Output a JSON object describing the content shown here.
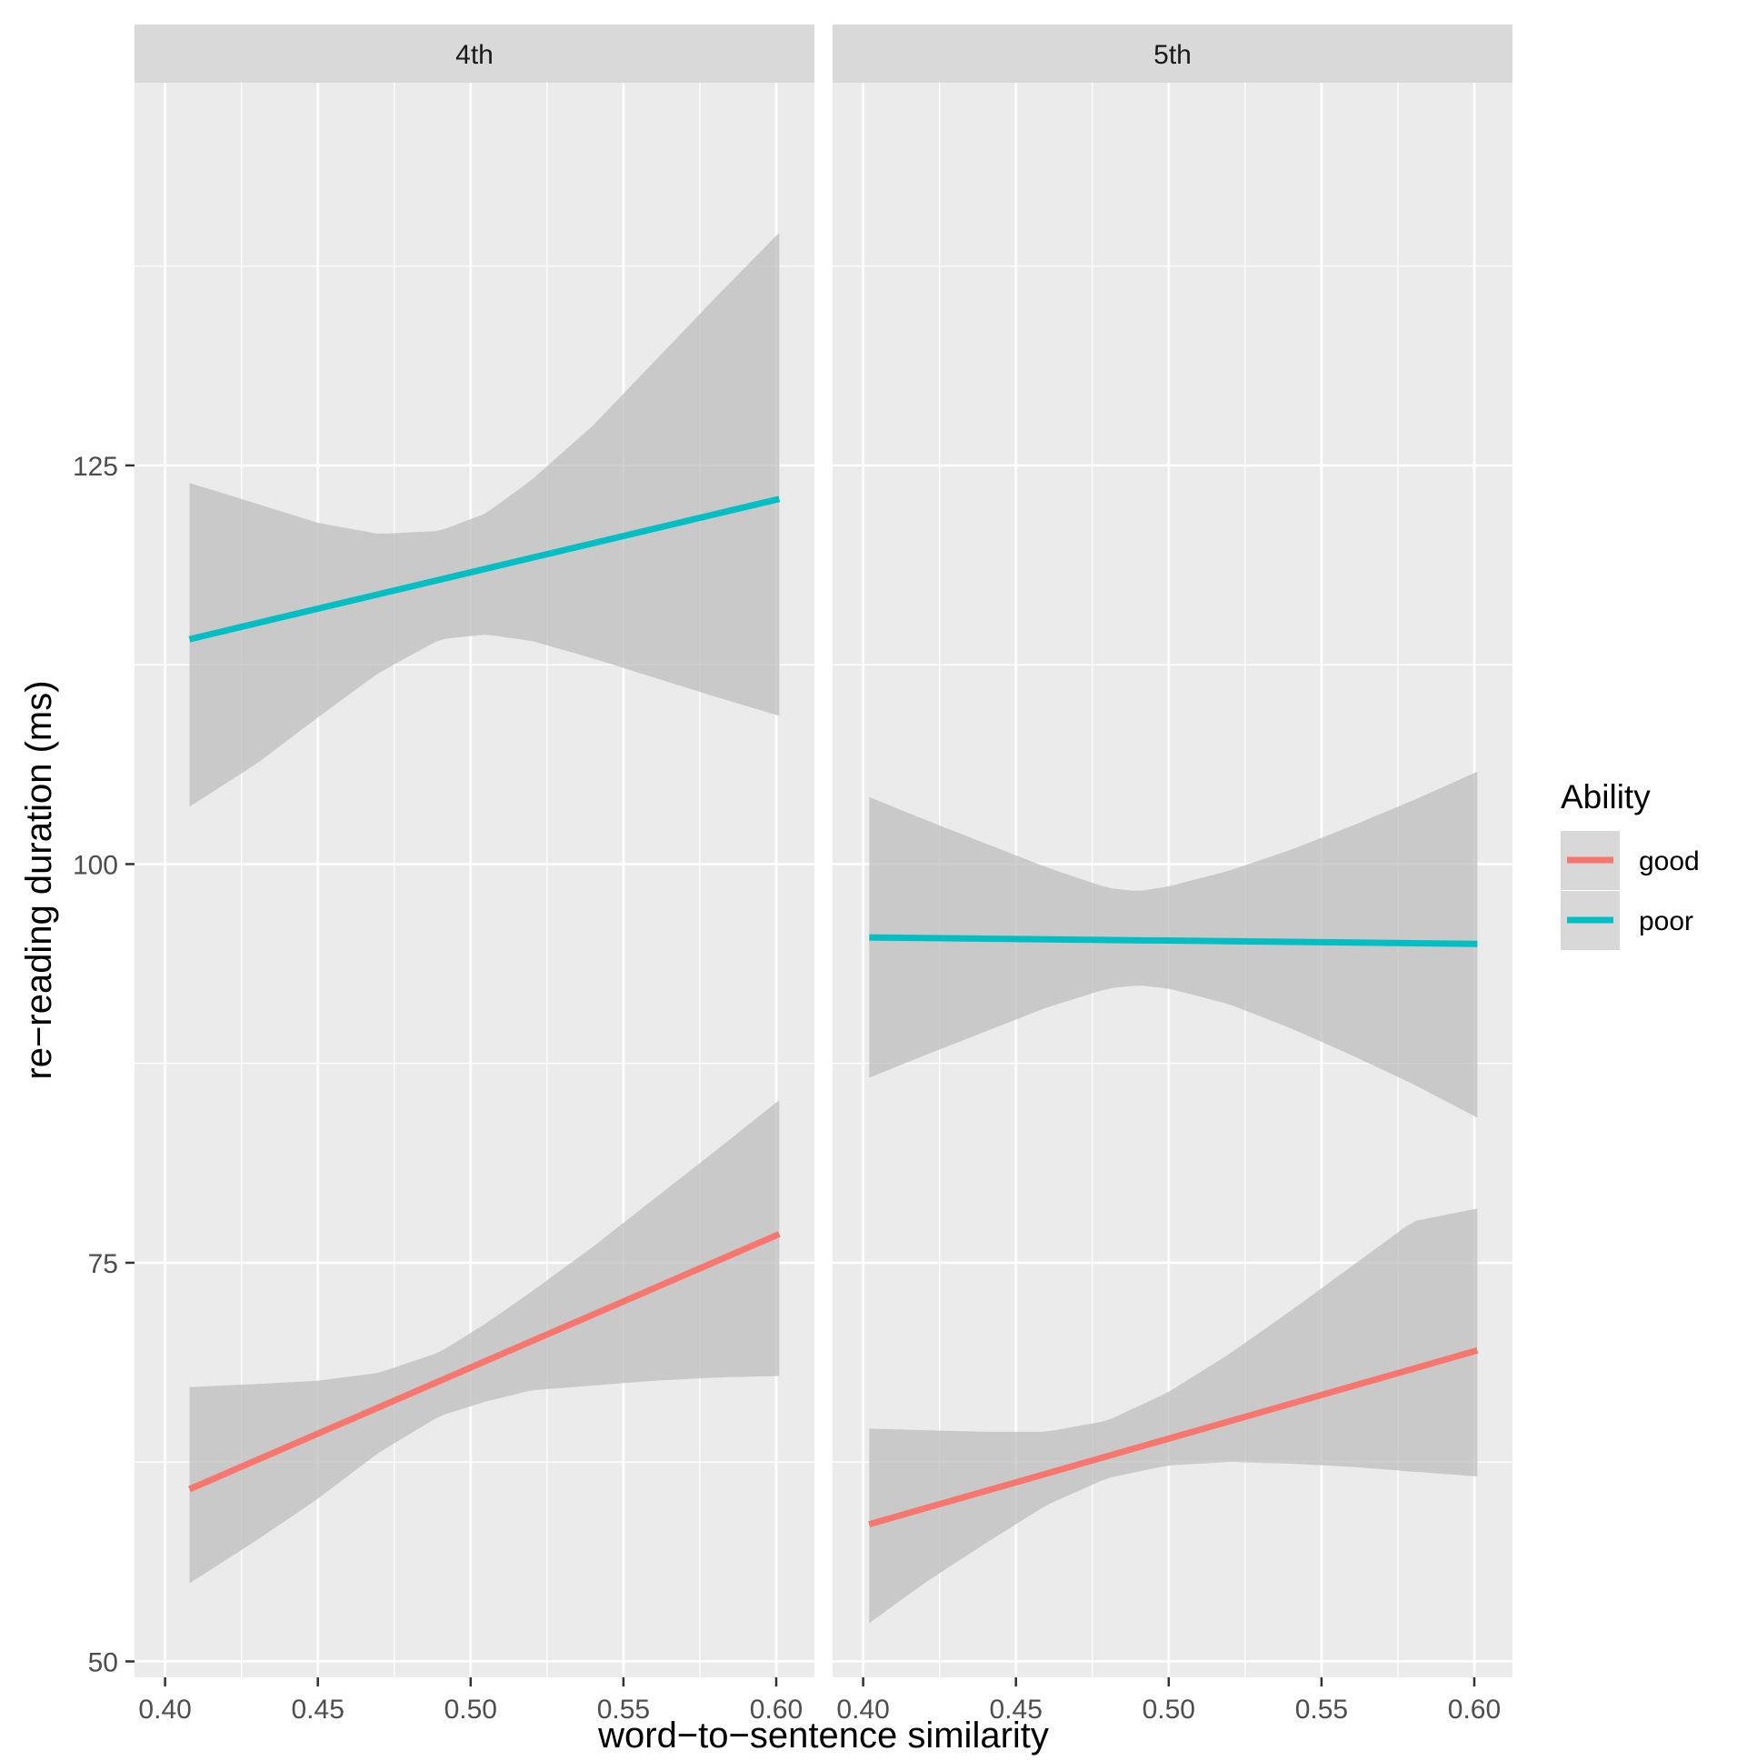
{
  "chart_data": {
    "type": "line",
    "xlabel": "word−to−sentence similarity",
    "ylabel": "re−reading duration (ms)",
    "xlim": [
      0.39,
      0.6125
    ],
    "ylim": [
      49,
      149
    ],
    "x_ticks": [
      0.4,
      0.45,
      0.5,
      0.55,
      0.6
    ],
    "x_tick_labels": [
      "0.40",
      "0.45",
      "0.50",
      "0.55",
      "0.60"
    ],
    "x_minor_ticks": [
      0.425,
      0.475,
      0.525,
      0.575
    ],
    "y_ticks": [
      50,
      75,
      100,
      125
    ],
    "y_tick_labels": [
      "50",
      "75",
      "100",
      "125"
    ],
    "y_minor_ticks": [
      62.5,
      87.5,
      112.5,
      137.5
    ],
    "legend": {
      "title": "Ability",
      "position": "right",
      "entries": [
        {
          "label": "good",
          "color": "#F8766D"
        },
        {
          "label": "poor",
          "color": "#00BFC4"
        }
      ]
    },
    "colors": {
      "good": "#F8766D",
      "poor": "#00BFC4",
      "ribbon": "#BEBEBE",
      "panel": "#EBEBEB",
      "strip": "#D9D9D9"
    },
    "panels": [
      {
        "facet": "4th",
        "series": [
          {
            "name": "good",
            "x": [
              0.408,
              0.601
            ],
            "y": [
              60.8,
              76.8
            ],
            "ribbon": {
              "x": [
                0.408,
                0.43,
                0.45,
                0.47,
                0.49,
                0.505,
                0.52,
                0.54,
                0.56,
                0.58,
                0.601
              ],
              "lower": [
                54.9,
                57.6,
                60.2,
                63.1,
                65.4,
                66.3,
                67.0,
                67.3,
                67.6,
                67.8,
                67.9
              ],
              "upper": [
                67.2,
                67.4,
                67.6,
                68.1,
                69.4,
                71.2,
                73.2,
                76.0,
                79.0,
                82.0,
                85.2
              ]
            }
          },
          {
            "name": "poor",
            "x": [
              0.408,
              0.601
            ],
            "y": [
              114.1,
              122.9
            ],
            "ribbon": {
              "x": [
                0.408,
                0.43,
                0.45,
                0.47,
                0.49,
                0.505,
                0.52,
                0.54,
                0.56,
                0.58,
                0.601
              ],
              "lower": [
                103.6,
                106.3,
                109.2,
                112.0,
                114.1,
                114.4,
                114.0,
                112.9,
                111.7,
                110.5,
                109.3
              ],
              "upper": [
                123.9,
                122.6,
                121.4,
                120.7,
                120.9,
                122.0,
                124.1,
                127.5,
                131.5,
                135.5,
                139.6
              ]
            }
          }
        ]
      },
      {
        "facet": "5th",
        "series": [
          {
            "name": "good",
            "x": [
              0.402,
              0.601
            ],
            "y": [
              58.6,
              69.5
            ],
            "ribbon": {
              "x": [
                0.402,
                0.42,
                0.44,
                0.46,
                0.48,
                0.5,
                0.52,
                0.54,
                0.56,
                0.58,
                0.601
              ],
              "lower": [
                52.4,
                54.9,
                57.4,
                59.8,
                61.5,
                62.3,
                62.5,
                62.4,
                62.2,
                61.9,
                61.6
              ],
              "upper": [
                64.6,
                64.5,
                64.4,
                64.4,
                65.1,
                66.9,
                69.3,
                72.0,
                74.8,
                77.6,
                78.4
              ]
            }
          },
          {
            "name": "poor",
            "x": [
              0.402,
              0.601
            ],
            "y": [
              95.4,
              95.0
            ],
            "ribbon": {
              "x": [
                0.402,
                0.42,
                0.44,
                0.46,
                0.48,
                0.49,
                0.5,
                0.52,
                0.54,
                0.56,
                0.58,
                0.601
              ],
              "lower": [
                86.6,
                88.0,
                89.5,
                91.0,
                92.2,
                92.4,
                92.2,
                91.2,
                89.7,
                88.0,
                86.2,
                84.1
              ],
              "upper": [
                104.2,
                102.8,
                101.3,
                99.8,
                98.5,
                98.3,
                98.6,
                99.6,
                100.9,
                102.4,
                104.0,
                105.8
              ]
            }
          }
        ]
      }
    ]
  }
}
